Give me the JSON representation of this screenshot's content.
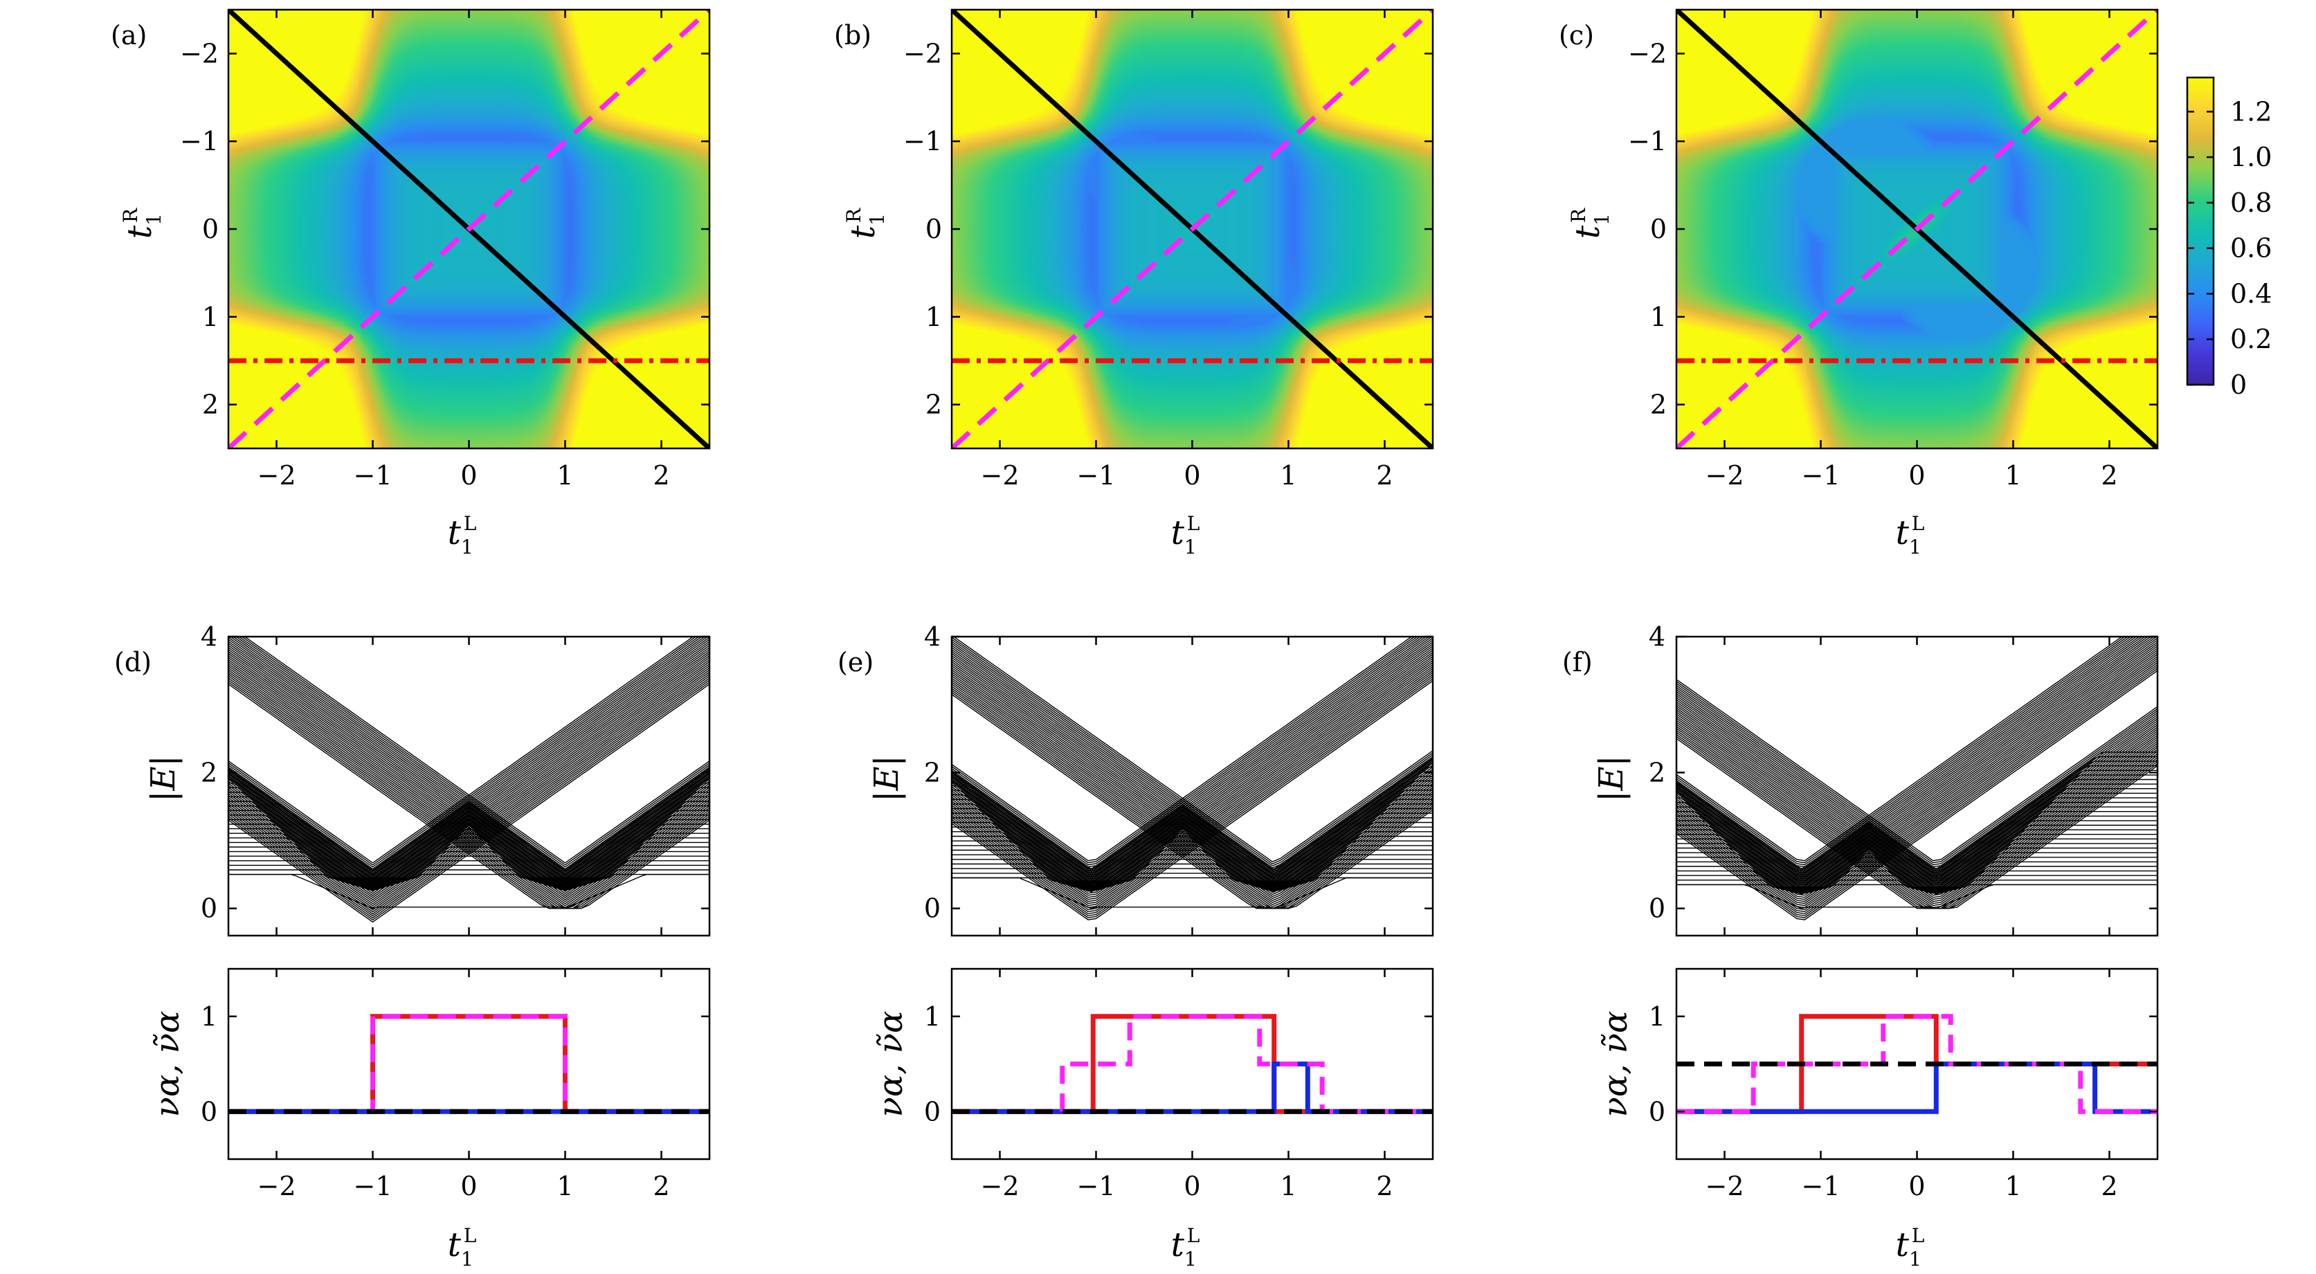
{
  "chart_data": [
    {
      "panel": "(a)",
      "type": "heatmap",
      "xlabel": "t1L",
      "ylabel": "t1R",
      "xlim": [
        -2.5,
        2.5
      ],
      "ylim": [
        -2.5,
        2.5
      ],
      "xticks": [
        "−2",
        "−1",
        "0",
        "1",
        "2"
      ],
      "yticks": [
        "−2",
        "−1",
        "0",
        "1",
        "2"
      ],
      "overlays": [
        {
          "style": "solid",
          "color": "#000000",
          "from": [
            -2.5,
            -2.5
          ],
          "to": [
            2.5,
            2.5
          ]
        },
        {
          "style": "dashed",
          "color": "#ff22ff",
          "from": [
            -2.5,
            2.5
          ],
          "to": [
            2.5,
            -2.5
          ]
        },
        {
          "style": "dash-dot",
          "color": "#ee1111",
          "y": 1.5
        }
      ]
    },
    {
      "panel": "(b)",
      "type": "heatmap",
      "xlabel": "t1L",
      "ylabel": "t1R",
      "xlim": [
        -2.5,
        2.5
      ],
      "ylim": [
        -2.5,
        2.5
      ],
      "xticks": [
        "−2",
        "−1",
        "0",
        "1",
        "2"
      ],
      "yticks": [
        "−2",
        "−1",
        "0",
        "1",
        "2"
      ],
      "overlays": [
        {
          "style": "solid",
          "color": "#000000",
          "from": [
            -2.5,
            -2.5
          ],
          "to": [
            2.5,
            2.5
          ]
        },
        {
          "style": "dashed",
          "color": "#ff22ff",
          "from": [
            -2.5,
            2.5
          ],
          "to": [
            2.5,
            -2.5
          ]
        },
        {
          "style": "dash-dot",
          "color": "#ee1111",
          "y": 1.5
        }
      ]
    },
    {
      "panel": "(c)",
      "type": "heatmap",
      "xlabel": "t1L",
      "ylabel": "t1R",
      "xlim": [
        -2.5,
        2.5
      ],
      "ylim": [
        -2.5,
        2.5
      ],
      "xticks": [
        "−2",
        "−1",
        "0",
        "1",
        "2"
      ],
      "yticks": [
        "−2",
        "−1",
        "0",
        "1",
        "2"
      ],
      "colorbar": {
        "min": 0,
        "max": 1.35,
        "ticks": [
          "0",
          "0.2",
          "0.4",
          "0.6",
          "0.8",
          "1.0",
          "1.2"
        ]
      },
      "overlays": [
        {
          "style": "solid",
          "color": "#000000",
          "from": [
            -2.5,
            -2.5
          ],
          "to": [
            2.5,
            2.5
          ]
        },
        {
          "style": "dashed",
          "color": "#ff22ff",
          "from": [
            -2.5,
            2.5
          ],
          "to": [
            2.5,
            -2.5
          ]
        },
        {
          "style": "dash-dot",
          "color": "#ee1111",
          "y": 1.5
        }
      ]
    },
    {
      "panel": "(d)",
      "type": "line",
      "ylabel": "|E|",
      "xlim": [
        -2.5,
        2.5
      ],
      "ylim": [
        -0.4,
        4
      ],
      "yticks": [
        "0",
        "2",
        "4"
      ],
      "bands": {
        "flat_low": 0.5,
        "flat_high": 2.45,
        "vertices": [
          -1.0,
          1.0
        ],
        "cross": 1.0
      }
    },
    {
      "panel": "(e)",
      "type": "line",
      "ylabel": "|E|",
      "xlim": [
        -2.5,
        2.5
      ],
      "ylim": [
        -0.4,
        4
      ],
      "yticks": [
        "0",
        "2",
        "4"
      ],
      "bands": {
        "flat_low": 0.45,
        "flat_high": 2.42,
        "vertices": [
          -1.05,
          0.85
        ],
        "cross": 0.95
      }
    },
    {
      "panel": "(f)",
      "type": "line",
      "ylabel": "|E|",
      "xlim": [
        -2.5,
        2.5
      ],
      "ylim": [
        -0.4,
        4
      ],
      "yticks": [
        "0",
        "2",
        "4"
      ],
      "bands": {
        "flat_low": 0.35,
        "flat_high": 2.3,
        "vertices": [
          -1.2,
          0.2
        ],
        "cross": 1.1
      }
    },
    {
      "panel": "(d) bottom",
      "type": "line",
      "xlabel": "t1L",
      "ylabel": "να, ν̃α",
      "xlim": [
        -2.5,
        2.5
      ],
      "ylim": [
        -0.5,
        1.5
      ],
      "xticks": [
        "−2",
        "−1",
        "0",
        "1",
        "2"
      ],
      "yticks": [
        "0",
        "1"
      ],
      "series": [
        {
          "color": "#e8171b",
          "style": "solid",
          "x": [
            -2.5,
            -1.0,
            -1.0,
            1.0,
            1.0,
            2.5
          ],
          "y": [
            0,
            0,
            1,
            1,
            0,
            0
          ]
        },
        {
          "color": "#ff22ff",
          "style": "dashed",
          "x": [
            -2.5,
            -1.0,
            -1.0,
            1.0,
            1.0,
            2.5
          ],
          "y": [
            0,
            0,
            1,
            1,
            0,
            0
          ]
        },
        {
          "color": "#1428e8",
          "style": "solid",
          "x": [
            -2.5,
            2.5
          ],
          "y": [
            0,
            0
          ]
        },
        {
          "color": "#000000",
          "style": "dashed",
          "x": [
            -2.5,
            2.5
          ],
          "y": [
            0,
            0
          ]
        }
      ]
    },
    {
      "panel": "(e) bottom",
      "type": "line",
      "xlabel": "t1L",
      "ylabel": "να, ν̃α",
      "xlim": [
        -2.5,
        2.5
      ],
      "ylim": [
        -0.5,
        1.5
      ],
      "xticks": [
        "−2",
        "−1",
        "0",
        "1",
        "2"
      ],
      "yticks": [
        "0",
        "1"
      ],
      "series": [
        {
          "color": "#e8171b",
          "style": "solid",
          "x": [
            -2.5,
            -1.03,
            -1.03,
            0.85,
            0.85,
            2.5
          ],
          "y": [
            0,
            0,
            1,
            1,
            0,
            0
          ]
        },
        {
          "color": "#1428e8",
          "style": "solid",
          "x": [
            -2.5,
            0.85,
            0.85,
            1.2,
            1.2,
            2.5
          ],
          "y": [
            0,
            0,
            0.5,
            0.5,
            0,
            0
          ]
        },
        {
          "color": "#ff22ff",
          "style": "dashed",
          "x": [
            -2.5,
            -1.35,
            -1.35,
            -0.65,
            -0.65,
            0.7,
            0.7,
            1.35,
            1.35,
            2.5
          ],
          "y": [
            0,
            0,
            0.5,
            0.5,
            1,
            1,
            0.5,
            0.5,
            0,
            0
          ]
        },
        {
          "color": "#000000",
          "style": "dashed",
          "x": [
            -2.5,
            2.5
          ],
          "y": [
            0,
            0
          ]
        }
      ]
    },
    {
      "panel": "(f) bottom",
      "type": "line",
      "xlabel": "t1L",
      "ylabel": "να, ν̃α",
      "xlim": [
        -2.5,
        2.5
      ],
      "ylim": [
        -0.5,
        1.5
      ],
      "xticks": [
        "−2",
        "−1",
        "0",
        "1",
        "2"
      ],
      "yticks": [
        "0",
        "1"
      ],
      "series": [
        {
          "color": "#e8171b",
          "style": "solid",
          "x": [
            -2.5,
            -1.2,
            -1.2,
            0.2,
            0.2,
            2.5
          ],
          "y": [
            0,
            0,
            1,
            1,
            0.5,
            0.5
          ]
        },
        {
          "color": "#1428e8",
          "style": "solid",
          "x": [
            -2.5,
            0.2,
            0.2,
            1.85,
            1.85,
            2.5
          ],
          "y": [
            0,
            0,
            0.5,
            0.5,
            0,
            0
          ]
        },
        {
          "color": "#ff22ff",
          "style": "dashed",
          "x": [
            -2.5,
            -1.7,
            -1.7,
            -0.35,
            -0.35,
            0.35,
            0.35,
            1.7,
            1.7,
            2.5
          ],
          "y": [
            0,
            0,
            0.5,
            0.5,
            1,
            1,
            0.5,
            0.5,
            0,
            0
          ]
        },
        {
          "color": "#000000",
          "style": "dashed",
          "x": [
            -2.5,
            2.5
          ],
          "y": [
            0.5,
            0.5
          ]
        }
      ]
    }
  ],
  "colormap": [
    "#3e26a8",
    "#4538d9",
    "#3c67fa",
    "#2a8ef0",
    "#1fa9d2",
    "#12bfb0",
    "#2ccf86",
    "#8cd04d",
    "#e0b93a",
    "#fcd434",
    "#f9fb0e"
  ]
}
